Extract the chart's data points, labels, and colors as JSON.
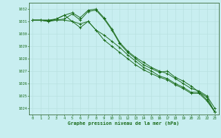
{
  "title": "Graphe pression niveau de la mer (hPa)",
  "bg_color": "#c8eef0",
  "grid_color": "#b8e0e0",
  "line_color": "#1a6b1a",
  "marker_color": "#1a6b1a",
  "ylim": [
    1023.5,
    1032.5
  ],
  "xlim": [
    -0.5,
    23.5
  ],
  "yticks": [
    1024,
    1025,
    1026,
    1027,
    1028,
    1029,
    1030,
    1031,
    1032
  ],
  "xticks": [
    0,
    1,
    2,
    3,
    4,
    5,
    6,
    7,
    8,
    9,
    10,
    11,
    12,
    13,
    14,
    15,
    16,
    17,
    18,
    19,
    20,
    21,
    22,
    23
  ],
  "series": [
    [
      1031.1,
      1031.1,
      1031.1,
      1031.1,
      1031.2,
      1031.6,
      1031.1,
      1031.8,
      1031.9,
      1031.2,
      1030.3,
      1029.2,
      1028.5,
      1028.0,
      1027.5,
      1027.2,
      1026.9,
      1027.0,
      1026.5,
      1026.2,
      1025.8,
      1025.3,
      1024.9,
      1023.7
    ],
    [
      1031.1,
      1031.1,
      1031.0,
      1031.2,
      1031.5,
      1031.0,
      1030.5,
      1031.0,
      1030.3,
      1029.9,
      1029.4,
      1028.9,
      1028.3,
      1027.8,
      1027.3,
      1027.0,
      1026.6,
      1026.4,
      1026.0,
      1025.7,
      1025.3,
      1025.3,
      1024.7,
      1023.7
    ],
    [
      1031.1,
      1031.1,
      1031.1,
      1031.2,
      1031.5,
      1031.7,
      1031.3,
      1031.9,
      1032.0,
      1031.3,
      1030.4,
      1029.3,
      1028.6,
      1028.1,
      1027.7,
      1027.3,
      1027.0,
      1026.8,
      1026.4,
      1026.0,
      1025.6,
      1025.4,
      1025.0,
      1024.0
    ],
    [
      1031.1,
      1031.1,
      1031.0,
      1031.1,
      1031.1,
      1031.0,
      1030.8,
      1031.0,
      1030.3,
      1029.5,
      1029.0,
      1028.5,
      1028.0,
      1027.5,
      1027.1,
      1026.8,
      1026.5,
      1026.3,
      1025.9,
      1025.6,
      1025.2,
      1025.2,
      1024.6,
      1023.7
    ]
  ]
}
